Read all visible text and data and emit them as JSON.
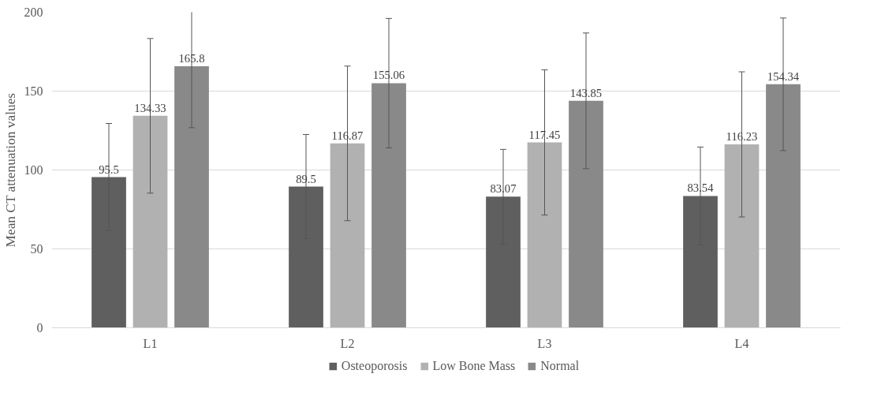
{
  "chart_data": {
    "type": "bar",
    "ylabel": "Mean CT attenuation values",
    "categories": [
      "L1",
      "L2",
      "L3",
      "L4"
    ],
    "series": [
      {
        "name": "Osteoporosis",
        "color": "#5f5f5f",
        "values": [
          95.5,
          89.5,
          83.07,
          83.54
        ],
        "errors": [
          34,
          33,
          30,
          31
        ]
      },
      {
        "name": "Low Bone Mass",
        "color": "#b1b1b1",
        "values": [
          134.33,
          116.87,
          117.45,
          116.23
        ],
        "errors": [
          49,
          49,
          46,
          46
        ]
      },
      {
        "name": "Normal",
        "color": "#898989",
        "values": [
          165.8,
          155.06,
          143.85,
          154.34
        ],
        "errors": [
          39,
          41,
          43,
          42
        ]
      }
    ],
    "ylim": [
      0,
      200
    ],
    "yticks": [
      0,
      50,
      100,
      150,
      200
    ],
    "grid": "y",
    "legend": "bottom",
    "data_labels": true
  }
}
